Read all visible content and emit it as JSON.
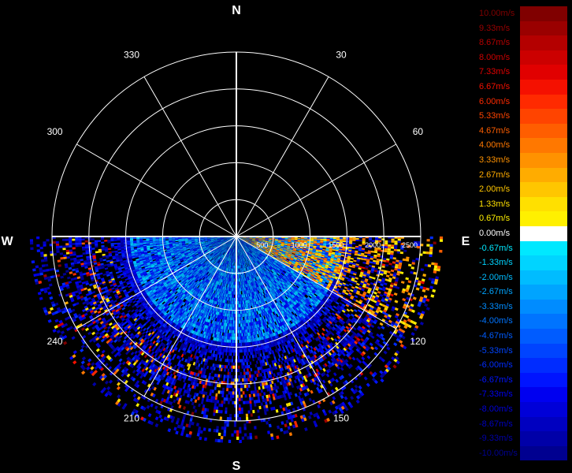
{
  "chart_data": {
    "type": "heatmap",
    "title": "",
    "projection": "polar",
    "theta_direction": "clockwise",
    "theta_zero": "north",
    "cardinal_labels": [
      {
        "name": "N",
        "angle": 0
      },
      {
        "name": "E",
        "angle": 90
      },
      {
        "name": "S",
        "angle": 180
      },
      {
        "name": "W",
        "angle": 270
      }
    ],
    "angle_labels": [
      "30",
      "60",
      "120",
      "150",
      "210",
      "240",
      "300",
      "330"
    ],
    "range_ticks": [
      500,
      1000,
      1500,
      2000,
      2500
    ],
    "range_max": 2500,
    "grid": true,
    "data_sector": {
      "from_angle": 90,
      "to_angle": 270
    },
    "colorbar": {
      "placement": "right",
      "unit": "m/s",
      "entries": [
        {
          "label": "10.00m/s",
          "value": 10.0,
          "color": "#800000"
        },
        {
          "label": "9.33m/s",
          "value": 9.33,
          "color": "#9a0000"
        },
        {
          "label": "8.67m/s",
          "value": 8.67,
          "color": "#b40000"
        },
        {
          "label": "8.00m/s",
          "value": 8.0,
          "color": "#cc0000"
        },
        {
          "label": "7.33m/s",
          "value": 7.33,
          "color": "#e10000"
        },
        {
          "label": "6.67m/s",
          "value": 6.67,
          "color": "#f51000"
        },
        {
          "label": "6.00m/s",
          "value": 6.0,
          "color": "#ff2a00"
        },
        {
          "label": "5.33m/s",
          "value": 5.33,
          "color": "#ff4400"
        },
        {
          "label": "4.67m/s",
          "value": 4.67,
          "color": "#ff5e00"
        },
        {
          "label": "4.00m/s",
          "value": 4.0,
          "color": "#ff7800"
        },
        {
          "label": "3.33m/s",
          "value": 3.33,
          "color": "#ff9200"
        },
        {
          "label": "2.67m/s",
          "value": 2.67,
          "color": "#ffac00"
        },
        {
          "label": "2.00m/s",
          "value": 2.0,
          "color": "#ffc600"
        },
        {
          "label": "1.33m/s",
          "value": 1.33,
          "color": "#ffe000"
        },
        {
          "label": "0.67m/s",
          "value": 0.67,
          "color": "#fff000"
        },
        {
          "label": "0.00m/s",
          "value": 0.0,
          "color": "#ffffff"
        },
        {
          "label": "-0.67m/s",
          "value": -0.67,
          "color": "#00e8ff"
        },
        {
          "label": "-1.33m/s",
          "value": -1.33,
          "color": "#00d4ff"
        },
        {
          "label": "-2.00m/s",
          "value": -2.0,
          "color": "#00bcff"
        },
        {
          "label": "-2.67m/s",
          "value": -2.67,
          "color": "#00a4ff"
        },
        {
          "label": "-3.33m/s",
          "value": -3.33,
          "color": "#008cff"
        },
        {
          "label": "-4.00m/s",
          "value": -4.0,
          "color": "#0074ff"
        },
        {
          "label": "-4.67m/s",
          "value": -4.67,
          "color": "#005cff"
        },
        {
          "label": "-5.33m/s",
          "value": -5.33,
          "color": "#0044ff"
        },
        {
          "label": "-6.00m/s",
          "value": -6.0,
          "color": "#002cff"
        },
        {
          "label": "-6.67m/s",
          "value": -6.67,
          "color": "#0014ff"
        },
        {
          "label": "-7.33m/s",
          "value": -7.33,
          "color": "#0000f0"
        },
        {
          "label": "-8.00m/s",
          "value": -8.0,
          "color": "#0000d8"
        },
        {
          "label": "-8.67m/s",
          "value": -8.67,
          "color": "#0000c0"
        },
        {
          "label": "-9.33m/s",
          "value": -9.33,
          "color": "#0000a8"
        },
        {
          "label": "-10.00m/s",
          "value": -10.0,
          "color": "#000090"
        }
      ]
    }
  }
}
